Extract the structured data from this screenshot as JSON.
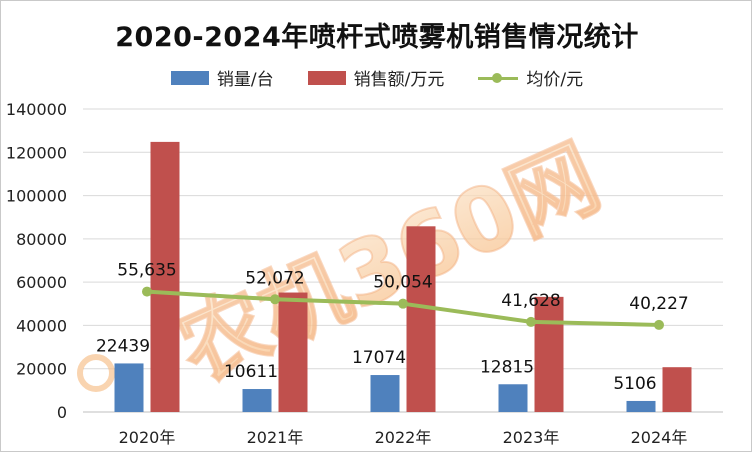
{
  "chart_data": {
    "type": "bar",
    "title": "2020-2024年喷杆式喷雾机销售情况统计",
    "categories": [
      "2020年",
      "2021年",
      "2022年",
      "2023年",
      "2024年"
    ],
    "ylim": [
      0,
      140000
    ],
    "yticks": [
      "0",
      "20000",
      "40000",
      "60000",
      "80000",
      "100000",
      "120000",
      "140000"
    ],
    "grid": true,
    "legend_position": "top",
    "series": [
      {
        "name": "销量/台",
        "kind": "bar",
        "color": "#4f81bd",
        "values": [
          22439,
          10611,
          17074,
          12815,
          5106
        ],
        "labels": [
          "22439",
          "10611",
          "17074",
          "12815",
          "5106"
        ]
      },
      {
        "name": "销售额/万元",
        "kind": "bar",
        "color": "#c0504d",
        "values": [
          124800,
          55200,
          85800,
          53200,
          20700
        ]
      },
      {
        "name": "均价/元",
        "kind": "line",
        "color": "#9bbb59",
        "values": [
          55635,
          52072,
          50054,
          41628,
          40227
        ],
        "labels": [
          "55,635",
          "52,072",
          "50,054",
          "41,628",
          "40,227"
        ]
      }
    ],
    "watermark": "农机360网"
  }
}
